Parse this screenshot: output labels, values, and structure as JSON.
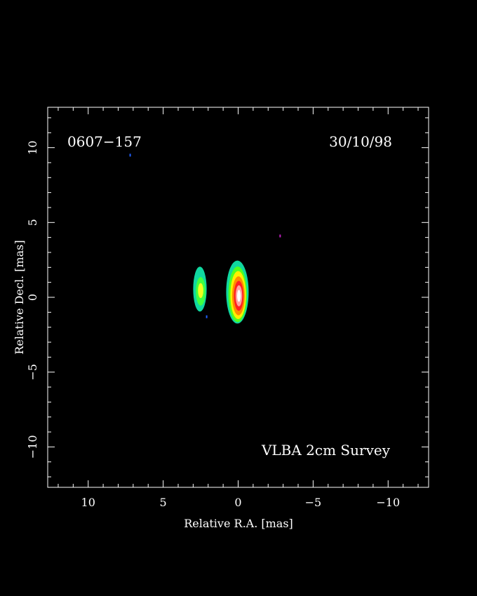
{
  "chart_data": {
    "type": "heatmap",
    "source_label": "0607−157",
    "date_label": "30/10/98",
    "survey_label": "VLBA 2cm Survey",
    "xlabel": "Relative R.A. [mas]",
    "ylabel": "Relative Decl. [mas]",
    "xlim": [
      12.7,
      -12.7
    ],
    "ylim": [
      -12.7,
      12.7
    ],
    "x_ticks": [
      10,
      5,
      0,
      -5,
      -10
    ],
    "y_ticks": [
      10,
      5,
      0,
      -5,
      -10
    ],
    "x_tick_labels": [
      "10",
      "5",
      "0",
      "−5",
      "−10"
    ],
    "y_tick_labels": [
      "10",
      "5",
      "0",
      "−5",
      "−10"
    ],
    "grid": false,
    "colors": {
      "background": "#000000",
      "frame": "#ffffff",
      "text": "#ffffff"
    },
    "components": [
      {
        "ra": 0.05,
        "dec": 0.2,
        "layers": [
          {
            "color": "#10d8a0",
            "rx": 0.75,
            "ry": 2.1,
            "dx": 0.0,
            "dy": 0.15
          },
          {
            "color": "#50ff20",
            "rx": 0.62,
            "ry": 1.85,
            "dx": -0.02,
            "dy": 0.0
          },
          {
            "color": "#fff000",
            "rx": 0.52,
            "ry": 1.6,
            "dx": -0.05,
            "dy": -0.05
          },
          {
            "color": "#ff8c00",
            "rx": 0.42,
            "ry": 1.3,
            "dx": -0.07,
            "dy": -0.1
          },
          {
            "color": "#ff2020",
            "rx": 0.32,
            "ry": 1.0,
            "dx": -0.09,
            "dy": -0.1
          },
          {
            "color": "#ffa0a0",
            "rx": 0.22,
            "ry": 0.7,
            "dx": -0.1,
            "dy": -0.1
          },
          {
            "color": "#ffffff",
            "rx": 0.12,
            "ry": 0.4,
            "dx": -0.1,
            "dy": -0.1
          }
        ]
      },
      {
        "ra": 2.55,
        "dec": 0.35,
        "layers": [
          {
            "color": "#10d8a0",
            "rx": 0.45,
            "ry": 1.5,
            "dx": 0.0,
            "dy": 0.2
          },
          {
            "color": "#40ff40",
            "rx": 0.32,
            "ry": 0.95,
            "dx": -0.05,
            "dy": 0.05
          },
          {
            "color": "#f0ff20",
            "rx": 0.18,
            "ry": 0.5,
            "dx": -0.05,
            "dy": 0.1
          }
        ]
      }
    ],
    "specks": [
      {
        "ra": 7.2,
        "dec": 9.5,
        "color": "#2060ff"
      },
      {
        "ra": 2.1,
        "dec": -1.3,
        "color": "#2060ff"
      },
      {
        "ra": -2.8,
        "dec": 4.1,
        "color": "#c020c0"
      }
    ]
  }
}
